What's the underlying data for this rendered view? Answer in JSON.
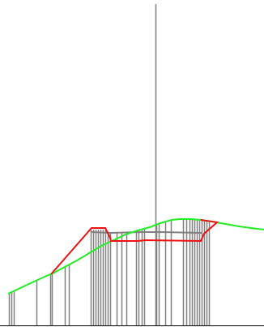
{
  "colors": {
    "background": "#ffffff",
    "vertical_lines": "#808080",
    "green_profile": "#22ee22",
    "red_profile": "#ee1111",
    "gray_profile": "#808080",
    "baseline": "#000000"
  }
}
